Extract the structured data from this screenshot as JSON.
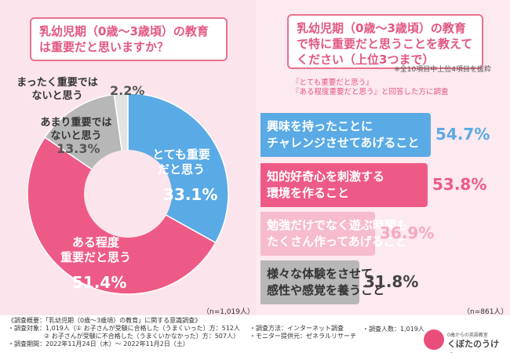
{
  "left": {
    "question": "乳幼児期（0歳〜3歳頃）の教育は重要だと思いますか？",
    "n_note": "（n=1,019人）"
  },
  "right": {
    "question": "乳幼児期（0歳〜3歳頃）の教育で特に重要だと思うことを教えてください（上位3つまで）",
    "subnote": "※全10項目中上位4項目を抜粋",
    "condition_line1": "『とても重要だと思う』",
    "condition_line2": "『ある程度重要だと思う』と回答した方に調査",
    "n_note": "（n=861人）"
  },
  "footer": {
    "title": "《調査概要：「乳幼児期（0歳〜3歳頃）の教育」に関する意識調査》",
    "target_line1": "・調査対象：1,019人（① お子さんが受験に合格した（うまくいった）方：512人",
    "target_line2": "② お子さんが受験に不合格した（うまくいかなかった）方：507人）",
    "period": "・調査期間：2022年11月24日（木）〜 2022年11月2日（土）",
    "method": "・調査方法：インターネット調査",
    "provider": "・モニター提供元：ゼネラルリサーチ",
    "people": "・調査人数：1,019人"
  },
  "logo": {
    "sub": "0歳からの英語教室",
    "name": "くぼたのうけん"
  },
  "chart_data": [
    {
      "type": "pie",
      "title": "乳幼児期（0歳〜3歳頃）の教育は重要だと思いますか？",
      "unit": "%",
      "slices": [
        {
          "label_line1": "とても重要",
          "label_line2": "だと思う",
          "value": 33.1,
          "display": "33.1%",
          "color": "#5aaae6"
        },
        {
          "label_line1": "ある程度",
          "label_line2": "重要だと思う",
          "value": 51.4,
          "display": "51.4%",
          "color": "#ee5a86"
        },
        {
          "label_line1": "あまり重要では",
          "label_line2": "ないと思う",
          "value": 13.3,
          "display": "13.3%",
          "color": "#b7b7b7"
        },
        {
          "label_line1": "まったく重要では",
          "label_line2": "ないと思う",
          "value": 2.2,
          "display": "2.2%",
          "color": "#e3e3e3"
        }
      ]
    },
    {
      "type": "bar",
      "orientation": "horizontal",
      "title": "乳幼児期（0歳〜3歳頃）の教育で特に重要だと思うことを教えてください（上位3つまで）",
      "unit": "%",
      "items": [
        {
          "line1": "興味を持ったことに",
          "line2": "チャレンジさせてあげること",
          "value": 54.7,
          "display": "54.7%",
          "color": "#5aaae6"
        },
        {
          "line1": "知的好奇心を刺激する",
          "line2": "環境を作ること",
          "value": 53.8,
          "display": "53.8%",
          "color": "#ee5a86"
        },
        {
          "line1": "勉強だけでなく遊ぶ時間も",
          "line2": "たくさん作ってあげること",
          "value": 36.9,
          "display": "36.9%",
          "color": "#f6bccd"
        },
        {
          "line1": "様々な体験をさせて",
          "line2": "感性や感覚を養うこと",
          "value": 31.8,
          "display": "31.8%",
          "color": "#b7b7b7"
        }
      ]
    }
  ]
}
